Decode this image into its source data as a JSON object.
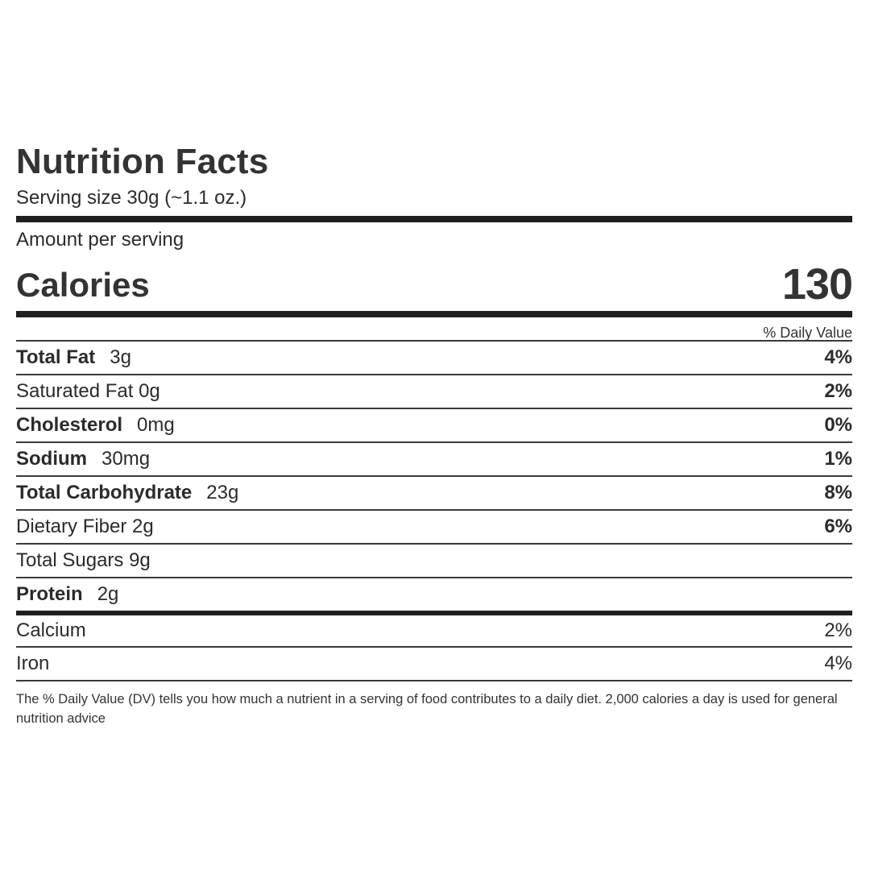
{
  "label": {
    "title": "Nutrition Facts",
    "serving_size": "Serving size 30g (~1.1 oz.)",
    "amount_per_serving": "Amount per serving",
    "calories_label": "Calories",
    "calories_value": "130",
    "dv_header": "% Daily Value",
    "nutrients": [
      {
        "name": "Total Fat",
        "amount": "3g",
        "dv": "4%"
      },
      {
        "name": "Saturated Fat 0g",
        "amount": "",
        "dv": "2%"
      },
      {
        "name": "Cholesterol",
        "amount": "0mg",
        "dv": "0%"
      },
      {
        "name": "Sodium",
        "amount": "30mg",
        "dv": "1%"
      },
      {
        "name": "Total Carbohydrate",
        "amount": "23g",
        "dv": "8%"
      },
      {
        "name": "Dietary Fiber 2g",
        "amount": "",
        "dv": "6%"
      },
      {
        "name": "Total Sugars 9g",
        "amount": "",
        "dv": ""
      },
      {
        "name": "Protein",
        "amount": "2g",
        "dv": ""
      }
    ],
    "vitamins": [
      {
        "name": "Calcium",
        "dv": "2%"
      },
      {
        "name": "Iron",
        "dv": "4%"
      }
    ],
    "footnote": "The % Daily Value (DV) tells you how much a nutrient in a serving of food contributes to a daily diet. 2,000 calories a day is used for general nutrition advice"
  }
}
